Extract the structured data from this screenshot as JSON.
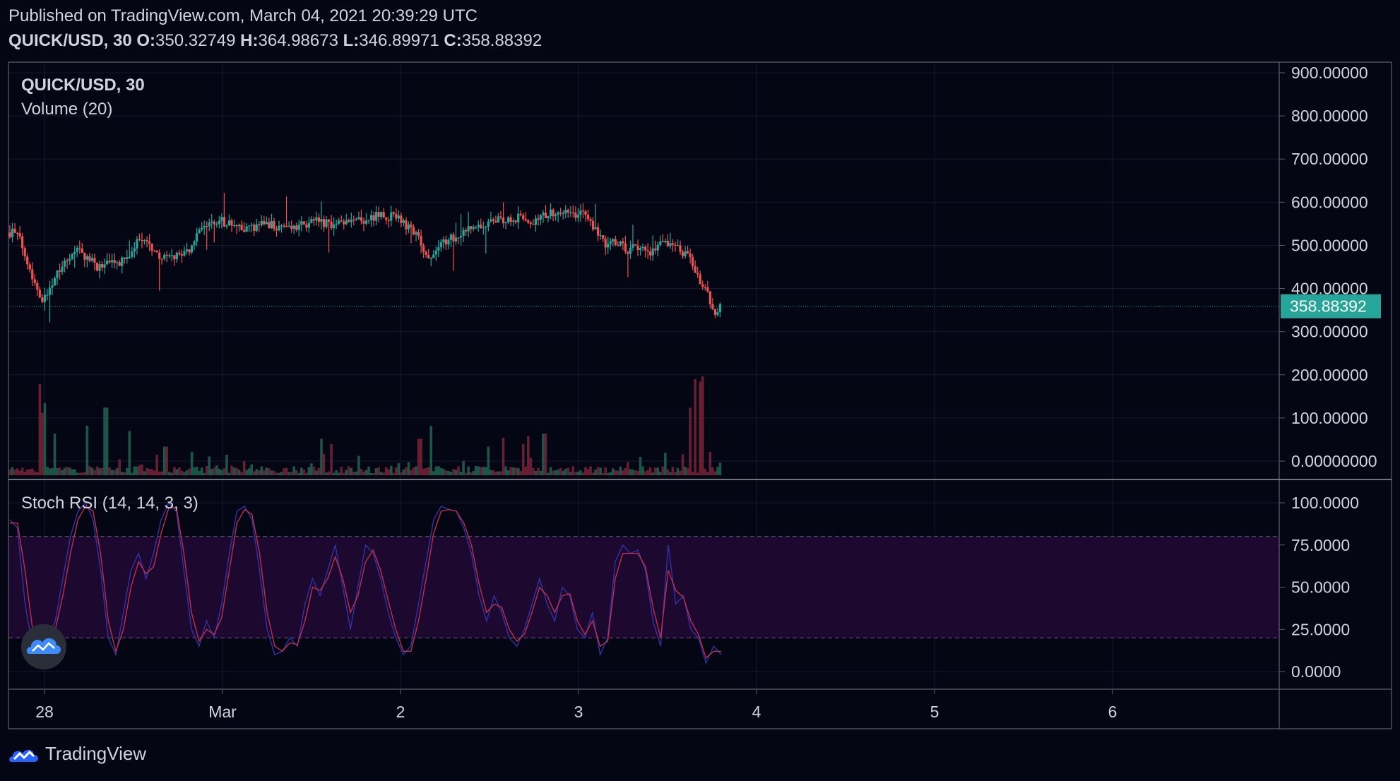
{
  "header": {
    "published": "Published on TradingView.com, March 04, 2021 20:39:29 UTC",
    "symbol": "QUICK/USD, 30",
    "o_label": "O:",
    "o_value": "350.32749",
    "h_label": "H:",
    "h_value": "364.98673",
    "l_label": "L:",
    "l_value": "346.89971",
    "c_label": "C:",
    "c_value": "358.88392"
  },
  "footer": {
    "brand": "TradingView"
  },
  "colors": {
    "background": "#050614",
    "up": "#26a69a",
    "down": "#ef5350",
    "grid": "#151a2c",
    "border": "#5d606b",
    "stoch_k": "#2f34a8",
    "stoch_d": "#c0304a",
    "band_fill": "#1d0830",
    "price_tag": "#26a69a"
  },
  "chart_data": [
    {
      "type": "candlestick",
      "title": "QUICK/USD, 30",
      "subtitle": "Volume (20)",
      "x_ticks": [
        "28",
        "Mar",
        "2",
        "3",
        "4",
        "5",
        "6"
      ],
      "y_ticks": [
        "900.00000",
        "800.00000",
        "700.00000",
        "600.00000",
        "500.00000",
        "400.00000",
        "300.00000",
        "200.00000",
        "100.00000",
        "0.00000000"
      ],
      "ylim": [
        0,
        950
      ],
      "last_price": 358.88392,
      "last_price_label": "358.88392",
      "price_path": [
        [
          0.0,
          530
        ],
        [
          0.08,
          535
        ],
        [
          0.2,
          510
        ],
        [
          0.3,
          480
        ],
        [
          0.45,
          420
        ],
        [
          0.55,
          395
        ],
        [
          0.65,
          370
        ],
        [
          0.75,
          400
        ],
        [
          0.9,
          440
        ],
        [
          1.1,
          470
        ],
        [
          1.3,
          490
        ],
        [
          1.5,
          470
        ],
        [
          1.7,
          450
        ],
        [
          1.9,
          455
        ],
        [
          2.1,
          460
        ],
        [
          2.3,
          470
        ],
        [
          2.5,
          520
        ],
        [
          2.7,
          500
        ],
        [
          2.9,
          470
        ],
        [
          3.2,
          475
        ],
        [
          3.45,
          490
        ],
        [
          3.6,
          520
        ],
        [
          3.8,
          545
        ],
        [
          4.0,
          560
        ],
        [
          4.2,
          550
        ],
        [
          4.5,
          535
        ],
        [
          4.8,
          545
        ],
        [
          5.0,
          550
        ],
        [
          5.3,
          540
        ],
        [
          5.6,
          545
        ],
        [
          5.9,
          555
        ],
        [
          6.2,
          550
        ],
        [
          6.5,
          550
        ],
        [
          6.8,
          560
        ],
        [
          7.1,
          570
        ],
        [
          7.4,
          565
        ],
        [
          7.6,
          550
        ],
        [
          7.9,
          510
        ],
        [
          8.0,
          470
        ],
        [
          8.2,
          490
        ],
        [
          8.4,
          510
        ],
        [
          8.6,
          520
        ],
        [
          8.8,
          540
        ],
        [
          9.0,
          545
        ],
        [
          9.2,
          545
        ],
        [
          9.4,
          560
        ],
        [
          9.6,
          560
        ],
        [
          9.8,
          565
        ],
        [
          10.0,
          555
        ],
        [
          10.2,
          560
        ],
        [
          10.4,
          575
        ],
        [
          10.6,
          580
        ],
        [
          10.8,
          570
        ],
        [
          11.0,
          575
        ],
        [
          11.2,
          555
        ],
        [
          11.35,
          515
        ],
        [
          11.5,
          500
        ],
        [
          11.7,
          510
        ],
        [
          11.9,
          490
        ],
        [
          12.1,
          495
        ],
        [
          12.3,
          485
        ],
        [
          12.6,
          505
        ],
        [
          12.8,
          505
        ],
        [
          12.95,
          480
        ],
        [
          13.1,
          470
        ],
        [
          13.25,
          430
        ],
        [
          13.4,
          395
        ],
        [
          13.5,
          370
        ],
        [
          13.6,
          345
        ],
        [
          13.7,
          359
        ]
      ],
      "price_range": [
        255,
        660
      ],
      "volume_max": 190,
      "volume_spikes": [
        [
          0.6,
          175
        ],
        [
          0.65,
          120
        ],
        [
          0.85,
          80
        ],
        [
          1.5,
          95
        ],
        [
          1.85,
          130
        ],
        [
          2.3,
          85
        ],
        [
          3.0,
          55
        ],
        [
          3.5,
          45
        ],
        [
          6.0,
          70
        ],
        [
          6.2,
          60
        ],
        [
          7.9,
          70
        ],
        [
          8.1,
          95
        ],
        [
          9.2,
          55
        ],
        [
          9.5,
          72
        ],
        [
          9.9,
          60
        ],
        [
          10.0,
          75
        ],
        [
          10.3,
          80
        ],
        [
          12.95,
          40
        ],
        [
          13.1,
          130
        ],
        [
          13.2,
          185
        ],
        [
          13.3,
          180
        ],
        [
          13.35,
          190
        ]
      ]
    },
    {
      "type": "line",
      "title": "Stoch RSI (14, 14, 3, 3)",
      "y_ticks": [
        "100.0000",
        "75.0000",
        "50.0000",
        "25.0000",
        "0.0000"
      ],
      "ylim": [
        0,
        100
      ],
      "band": [
        20,
        80
      ],
      "series": [
        {
          "values": [
            90,
            85,
            40,
            15,
            5,
            20,
            30,
            55,
            80,
            95,
            100,
            90,
            60,
            20,
            10,
            35,
            60,
            70,
            55,
            70,
            90,
            100,
            95,
            60,
            25,
            15,
            30,
            20,
            40,
            70,
            95,
            98,
            90,
            60,
            25,
            10,
            12,
            20,
            15,
            40,
            55,
            45,
            60,
            75,
            50,
            25,
            50,
            75,
            70,
            55,
            35,
            20,
            10,
            15,
            40,
            65,
            90,
            98,
            96,
            95,
            85,
            70,
            45,
            30,
            45,
            35,
            20,
            15,
            25,
            40,
            55,
            40,
            30,
            50,
            45,
            25,
            20,
            35,
            10,
            20,
            65,
            75,
            70,
            72,
            60,
            30,
            15,
            75,
            40,
            45,
            25,
            20,
            5,
            15,
            10
          ]
        },
        {
          "values": [
            88,
            88,
            60,
            25,
            8,
            12,
            25,
            45,
            70,
            90,
            98,
            95,
            70,
            30,
            12,
            25,
            50,
            65,
            58,
            62,
            82,
            97,
            97,
            70,
            35,
            18,
            25,
            22,
            32,
            60,
            88,
            96,
            93,
            70,
            35,
            15,
            12,
            17,
            16,
            30,
            50,
            48,
            55,
            68,
            55,
            35,
            45,
            65,
            72,
            60,
            42,
            25,
            12,
            12,
            30,
            55,
            82,
            95,
            96,
            95,
            88,
            75,
            52,
            35,
            40,
            38,
            25,
            18,
            22,
            35,
            50,
            45,
            35,
            45,
            46,
            30,
            22,
            30,
            15,
            18,
            55,
            70,
            70,
            70,
            62,
            38,
            20,
            60,
            48,
            44,
            30,
            22,
            8,
            12,
            12
          ]
        }
      ]
    }
  ]
}
